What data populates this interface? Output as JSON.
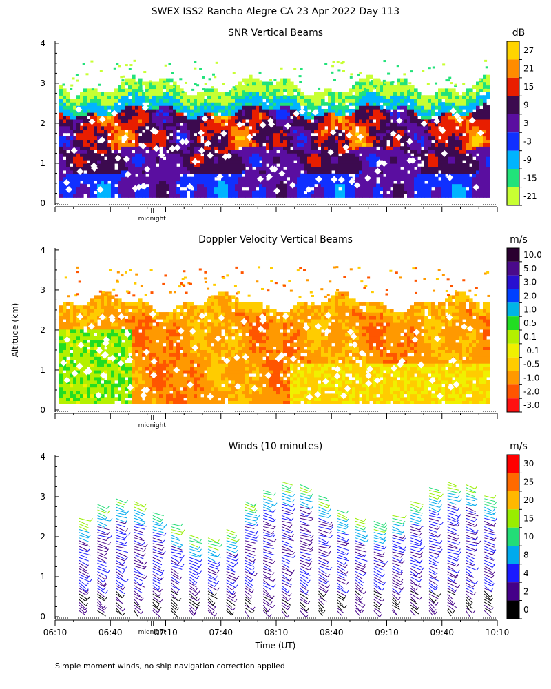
{
  "figure": {
    "title": "SWEX ISS2 Rancho Alegre CA  23 Apr 2022 Day 113",
    "ylabel": "Altitude (km)",
    "xlabel": "Time (UT)",
    "footnote": "Simple moment winds, no ship navigation correction applied",
    "midnight_label": "midnight"
  },
  "chart_data": [
    {
      "type": "heatmap",
      "title": "SNR Vertical Beams",
      "unit": "dB",
      "ylim": [
        0,
        4
      ],
      "yticks": [
        "0",
        "1",
        "2",
        "3",
        "4"
      ],
      "xlim_minutes_utc": [
        370,
        610
      ],
      "colorbar": {
        "labels": [
          "27",
          "21",
          "15",
          "9",
          "3",
          "-3",
          "-9",
          "-15",
          "-21"
        ],
        "colors": [
          "#ffd400",
          "#ff8c00",
          "#e81e00",
          "#3c0a4f",
          "#5a0ea0",
          "#1030ff",
          "#00b4ff",
          "#21e27a",
          "#c8ff33"
        ]
      },
      "midnight_marker_time": "07:00"
    },
    {
      "type": "heatmap",
      "title": "Doppler Velocity Vertical Beams",
      "unit": "m/s",
      "ylim": [
        0,
        4
      ],
      "yticks": [
        "0",
        "1",
        "2",
        "3",
        "4"
      ],
      "xlim_minutes_utc": [
        370,
        610
      ],
      "colorbar": {
        "labels": [
          "10.0",
          "5.0",
          "3.0",
          "2.0",
          "1.0",
          "0.5",
          "0.1",
          "-0.1",
          "-0.5",
          "-1.0",
          "-2.0",
          "-3.0"
        ],
        "colors": [
          "#2a0030",
          "#4a0a8a",
          "#2810d0",
          "#0040ff",
          "#00b4e6",
          "#22dd22",
          "#b4f000",
          "#f0f000",
          "#ffcc00",
          "#ff9900",
          "#ff5500",
          "#ff1010"
        ]
      },
      "midnight_marker_time": "07:00"
    },
    {
      "type": "wind_barbs",
      "title": "Winds (10 minutes)",
      "unit": "m/s",
      "ylim": [
        0,
        4
      ],
      "yticks": [
        "0",
        "1",
        "2",
        "3",
        "4"
      ],
      "xticks": [
        "06:10",
        "06:40",
        "07:10",
        "07:40",
        "08:10",
        "08:40",
        "09:10",
        "09:40",
        "10:10"
      ],
      "colorbar": {
        "labels": [
          "30",
          "25",
          "20",
          "15",
          "10",
          "8",
          "4",
          "2",
          "0"
        ],
        "colors": [
          "#ff0000",
          "#ff6a00",
          "#ffb800",
          "#99ee00",
          "#22dd77",
          "#00aaee",
          "#1a1aff",
          "#440088",
          "#000000"
        ]
      },
      "midnight_marker_time": "07:00"
    }
  ]
}
